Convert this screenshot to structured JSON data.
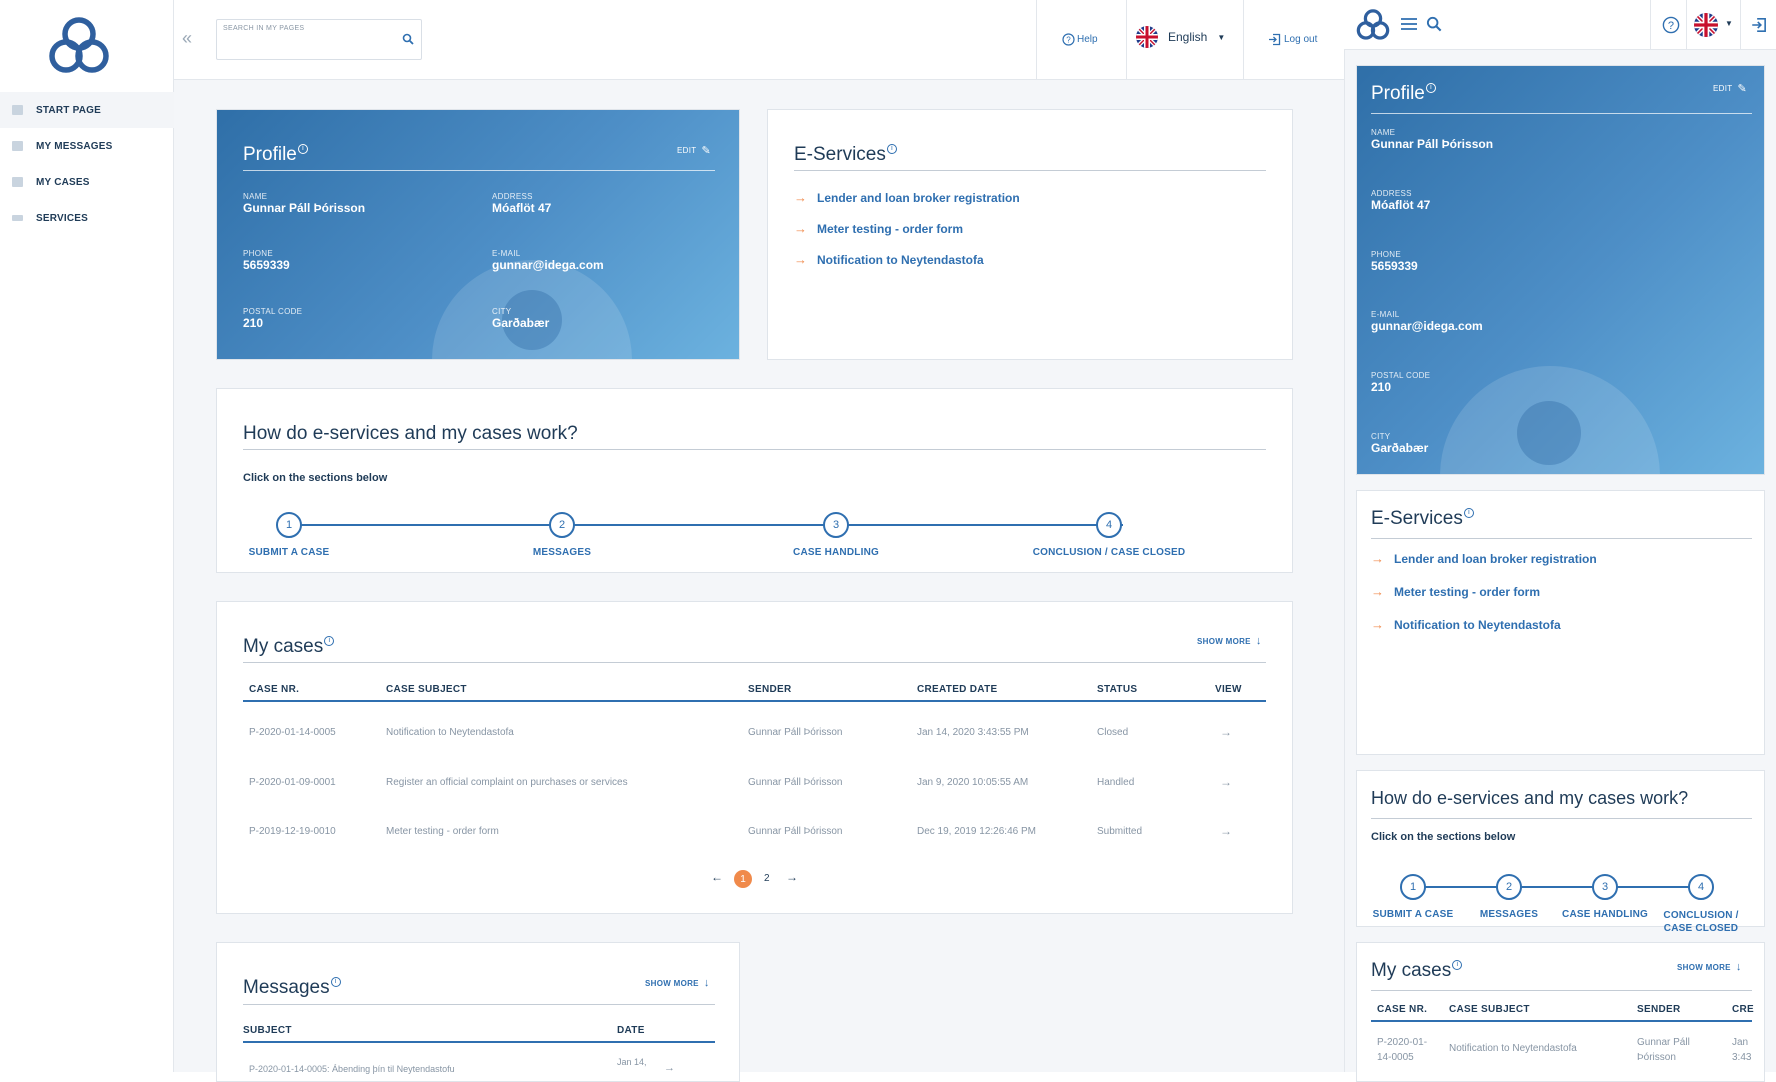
{
  "sidebar": {
    "items": [
      {
        "label": "START PAGE"
      },
      {
        "label": "MY MESSAGES"
      },
      {
        "label": "MY CASES"
      },
      {
        "label": "SERVICES"
      }
    ]
  },
  "header": {
    "collapse_icon": "double-chevron-left",
    "search_placeholder": "SEARCH IN MY PAGES",
    "help_label": "Help",
    "language": "English",
    "logout_label": "Log out"
  },
  "profile": {
    "title": "Profile",
    "edit_label": "EDIT",
    "fields": {
      "name_label": "NAME",
      "name": "Gunnar Páll Þórisson",
      "address_label": "ADDRESS",
      "address": "Móaflöt 47",
      "phone_label": "PHONE",
      "phone": "5659339",
      "email_label": "E-MAIL",
      "email": "gunnar@idega.com",
      "postal_label": "POSTAL CODE",
      "postal": "210",
      "city_label": "CITY",
      "city": "Garðabær"
    }
  },
  "eservices": {
    "title": "E-Services",
    "items": [
      "Lender and loan broker registration",
      "Meter testing - order form",
      "Notification to Neytendastofa"
    ]
  },
  "howto": {
    "title": "How do e-services and my cases work?",
    "subtitle": "Click on the sections below",
    "steps": [
      {
        "num": "1",
        "label": "SUBMIT A CASE"
      },
      {
        "num": "2",
        "label": "MESSAGES"
      },
      {
        "num": "3",
        "label": "CASE HANDLING"
      },
      {
        "num": "4",
        "label": "CONCLUSION / CASE CLOSED"
      }
    ],
    "steps_mobile_4": "CONCLUSION /\nCASE CLOSED"
  },
  "cases": {
    "title": "My cases",
    "show_more": "SHOW MORE",
    "headers": [
      "CASE NR.",
      "CASE SUBJECT",
      "SENDER",
      "CREATED DATE",
      "STATUS",
      "VIEW"
    ],
    "rows": [
      [
        "P-2020-01-14-0005",
        "Notification to Neytendastofa",
        "Gunnar Páll Þórisson",
        "Jan 14, 2020 3:43:55 PM",
        "Closed"
      ],
      [
        "P-2020-01-09-0001",
        "Register an official complaint on purchases or services",
        "Gunnar Páll Þórisson",
        "Jan 9, 2020 10:05:55 AM",
        "Handled"
      ],
      [
        "P-2019-12-19-0010",
        "Meter testing - order form",
        "Gunnar Páll Þórisson",
        "Dec 19, 2019 12:26:46 PM",
        "Submitted"
      ]
    ],
    "pages": [
      "1",
      "2"
    ],
    "current_page": "1"
  },
  "messages": {
    "title": "Messages",
    "show_more": "SHOW MORE",
    "headers": [
      "SUBJECT",
      "DATE"
    ],
    "rows": [
      [
        "P-2020-01-14-0005: Ábending þín til Neytendastofu",
        "Jan 14,"
      ]
    ]
  },
  "mobile": {
    "cases_headers": [
      "CASE NR.",
      "CASE SUBJECT",
      "SENDER",
      "CRE"
    ],
    "case_row": [
      "P-2020-01-\n14-0005",
      "Notification to Neytendastofa",
      "Gunnar Páll\nÞórisson",
      "Jan\n3:43"
    ]
  },
  "colors": {
    "accent": "#2f6fb0",
    "arrow": "#f08a4b",
    "page_active": "#f08a4b",
    "text": "#1f3b57"
  }
}
